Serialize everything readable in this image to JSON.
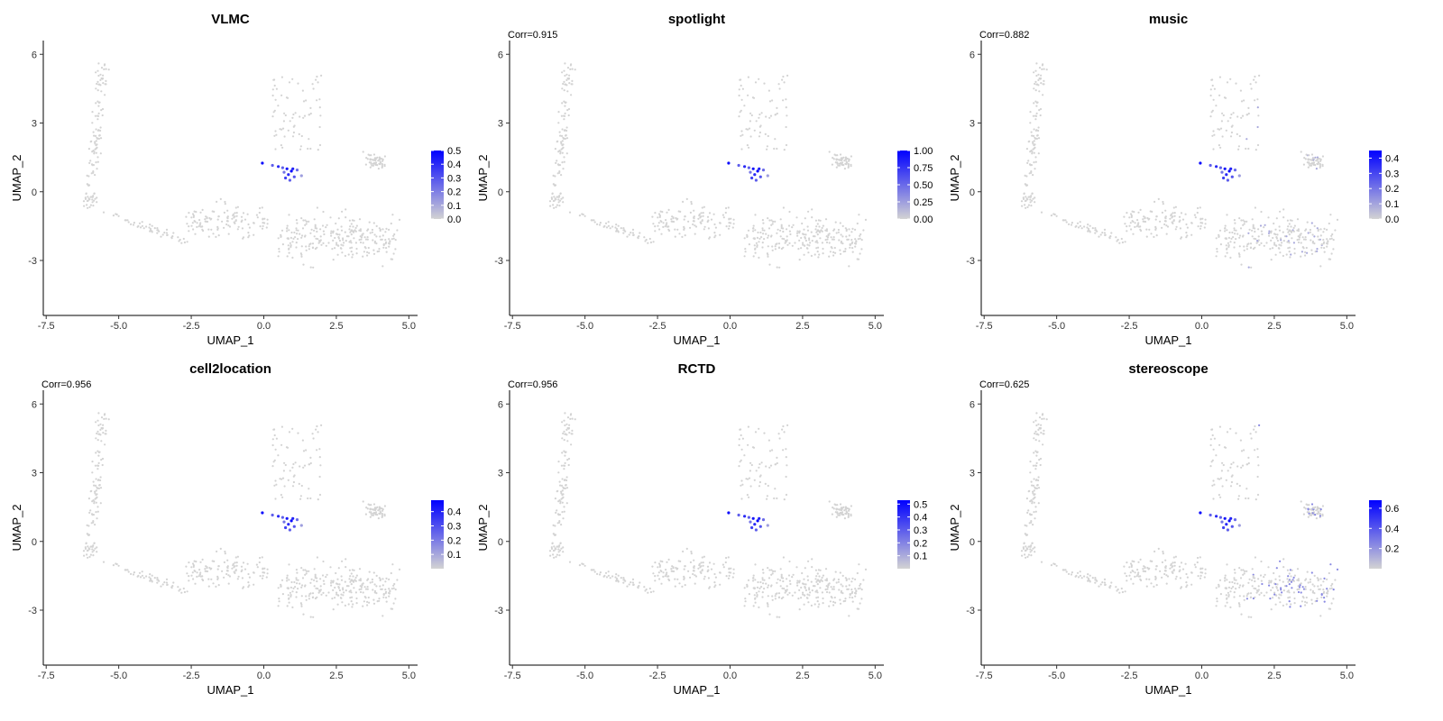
{
  "chart_data": [
    {
      "type": "scatter",
      "title": "VLMC",
      "subtitle": "",
      "xlabel": "UMAP_1",
      "ylabel": "UMAP_2",
      "xlim": [
        -7.6,
        5.3
      ],
      "ylim": [
        -5.4,
        6.6
      ],
      "xticks": [
        "-7.5",
        "-5.0",
        "-2.5",
        "0.0",
        "2.5",
        "5.0"
      ],
      "yticks": [
        "6",
        "3",
        "0",
        "-3"
      ],
      "legend": {
        "placement": "right",
        "max": 0.5,
        "ticks": [
          "0.5",
          "0.4",
          "0.3",
          "0.2",
          "0.1",
          "0.0"
        ]
      },
      "low_color": "#d3d3d3",
      "high_color": "#0000ff"
    },
    {
      "type": "scatter",
      "title": "spotlight",
      "subtitle": "Corr=0.915",
      "xlabel": "UMAP_1",
      "ylabel": "UMAP_2",
      "xlim": [
        -7.6,
        5.3
      ],
      "ylim": [
        -5.4,
        6.6
      ],
      "xticks": [
        "-7.5",
        "-5.0",
        "-2.5",
        "0.0",
        "2.5",
        "5.0"
      ],
      "yticks": [
        "6",
        "3",
        "0",
        "-3"
      ],
      "legend": {
        "placement": "right",
        "max": 1.0,
        "ticks": [
          "1.00",
          "0.75",
          "0.50",
          "0.25",
          "0.00"
        ]
      },
      "low_color": "#d3d3d3",
      "high_color": "#0000ff"
    },
    {
      "type": "scatter",
      "title": "music",
      "subtitle": "Corr=0.882",
      "xlabel": "UMAP_1",
      "ylabel": "UMAP_2",
      "xlim": [
        -7.6,
        5.3
      ],
      "ylim": [
        -5.4,
        6.6
      ],
      "xticks": [
        "-7.5",
        "-5.0",
        "-2.5",
        "0.0",
        "2.5",
        "5.0"
      ],
      "yticks": [
        "6",
        "3",
        "0",
        "-3"
      ],
      "legend": {
        "placement": "right",
        "max": 0.45,
        "ticks": [
          "0.4",
          "0.3",
          "0.2",
          "0.1",
          "0.0"
        ]
      },
      "low_color": "#d3d3d3",
      "high_color": "#0000ff"
    },
    {
      "type": "scatter",
      "title": "cell2location",
      "subtitle": "Corr=0.956",
      "xlabel": "UMAP_1",
      "ylabel": "UMAP_2",
      "xlim": [
        -7.6,
        5.3
      ],
      "ylim": [
        -5.4,
        6.6
      ],
      "xticks": [
        "-7.5",
        "-5.0",
        "-2.5",
        "0.0",
        "2.5",
        "5.0"
      ],
      "yticks": [
        "6",
        "3",
        "0",
        "-3"
      ],
      "legend": {
        "placement": "right",
        "max": 0.48,
        "ticks": [
          "0.4",
          "0.3",
          "0.2",
          "0.1"
        ]
      },
      "low_color": "#d3d3d3",
      "high_color": "#0000ff"
    },
    {
      "type": "scatter",
      "title": "RCTD",
      "subtitle": "Corr=0.956",
      "xlabel": "UMAP_1",
      "ylabel": "UMAP_2",
      "xlim": [
        -7.6,
        5.3
      ],
      "ylim": [
        -5.4,
        6.6
      ],
      "xticks": [
        "-7.5",
        "-5.0",
        "-2.5",
        "0.0",
        "2.5",
        "5.0"
      ],
      "yticks": [
        "6",
        "3",
        "0",
        "-3"
      ],
      "legend": {
        "placement": "right",
        "max": 0.53,
        "ticks": [
          "0.5",
          "0.4",
          "0.3",
          "0.2",
          "0.1"
        ]
      },
      "low_color": "#d3d3d3",
      "high_color": "#0000ff"
    },
    {
      "type": "scatter",
      "title": "stereoscope",
      "subtitle": "Corr=0.625",
      "xlabel": "UMAP_1",
      "ylabel": "UMAP_2",
      "xlim": [
        -7.6,
        5.3
      ],
      "ylim": [
        -5.4,
        6.6
      ],
      "xticks": [
        "-7.5",
        "-5.0",
        "-2.5",
        "0.0",
        "2.5",
        "5.0"
      ],
      "yticks": [
        "6",
        "3",
        "0",
        "-3"
      ],
      "legend": {
        "placement": "right",
        "max": 0.68,
        "ticks": [
          "0.6",
          "0.4",
          "0.2"
        ]
      },
      "low_color": "#d3d3d3",
      "high_color": "#0000ff"
    }
  ],
  "hotspot": {
    "points": [
      [
        -0.05,
        1.25
      ],
      [
        0.3,
        1.15
      ],
      [
        0.5,
        1.1
      ],
      [
        0.65,
        1.05
      ],
      [
        0.8,
        1.0
      ],
      [
        0.95,
        0.9
      ],
      [
        0.85,
        0.75
      ],
      [
        0.75,
        0.6
      ],
      [
        1.0,
        1.0
      ],
      [
        0.9,
        0.5
      ],
      [
        1.15,
        0.95
      ],
      [
        1.3,
        0.7
      ],
      [
        0.7,
        0.85
      ],
      [
        1.05,
        0.65
      ]
    ],
    "intensity": [
      0.95,
      0.55,
      0.8,
      0.55,
      0.9,
      0.95,
      0.8,
      0.7,
      0.85,
      0.55,
      0.5,
      0.25,
      0.45,
      0.6
    ]
  }
}
